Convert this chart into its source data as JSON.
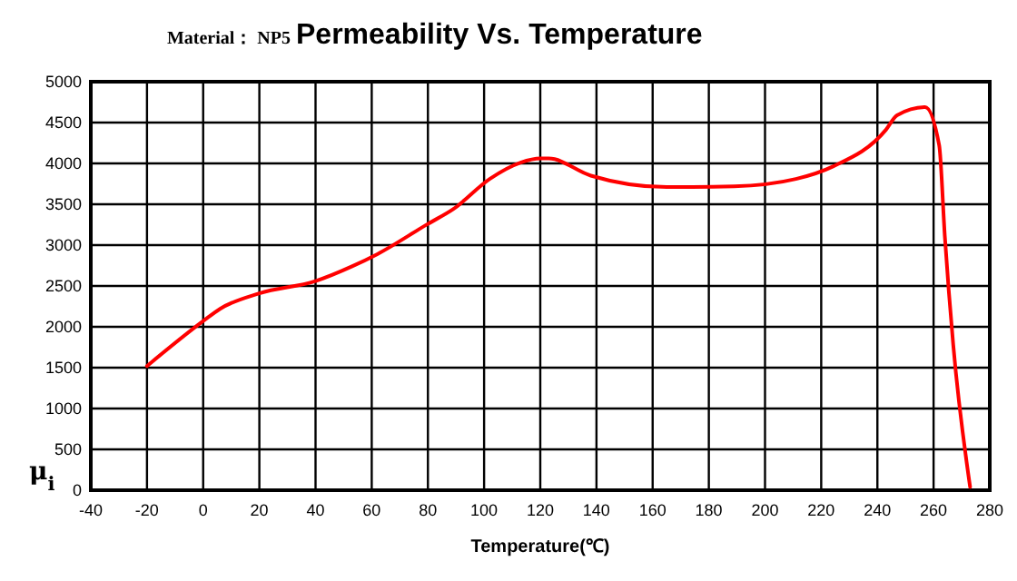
{
  "chart_data": {
    "type": "line",
    "title": "Permeability Vs. Temperature",
    "subtitle": "Material： NP5",
    "xlabel": "Temperature(℃)",
    "ylabel": "μ$_{i}$",
    "xlim": [
      -40,
      280
    ],
    "xticks": [
      -40,
      -20,
      0,
      20,
      40,
      60,
      80,
      100,
      120,
      140,
      160,
      180,
      200,
      220,
      240,
      260,
      280
    ],
    "ylim": [
      0,
      5000
    ],
    "yticks": [
      0,
      500,
      1000,
      1500,
      2000,
      2500,
      3000,
      3500,
      4000,
      4500,
      5000
    ],
    "grid": true,
    "marker": "none",
    "line_style": "solid",
    "series": [
      {
        "color": "#ff0000",
        "x": [
          -20,
          0,
          6,
          20,
          40,
          53,
          62,
          80,
          89,
          102,
          113,
          120,
          123,
          138,
          165,
          189,
          211,
          224,
          243,
          247,
          257,
          262,
          264,
          267,
          273
        ],
        "values": [
          1520,
          2070,
          2220,
          2410,
          2560,
          2740,
          2890,
          3260,
          3440,
          3810,
          4010,
          4060,
          4060,
          3850,
          3710,
          3720,
          3810,
          3960,
          4410,
          4590,
          4690,
          4220,
          3110,
          1780,
          40
        ]
      }
    ]
  }
}
